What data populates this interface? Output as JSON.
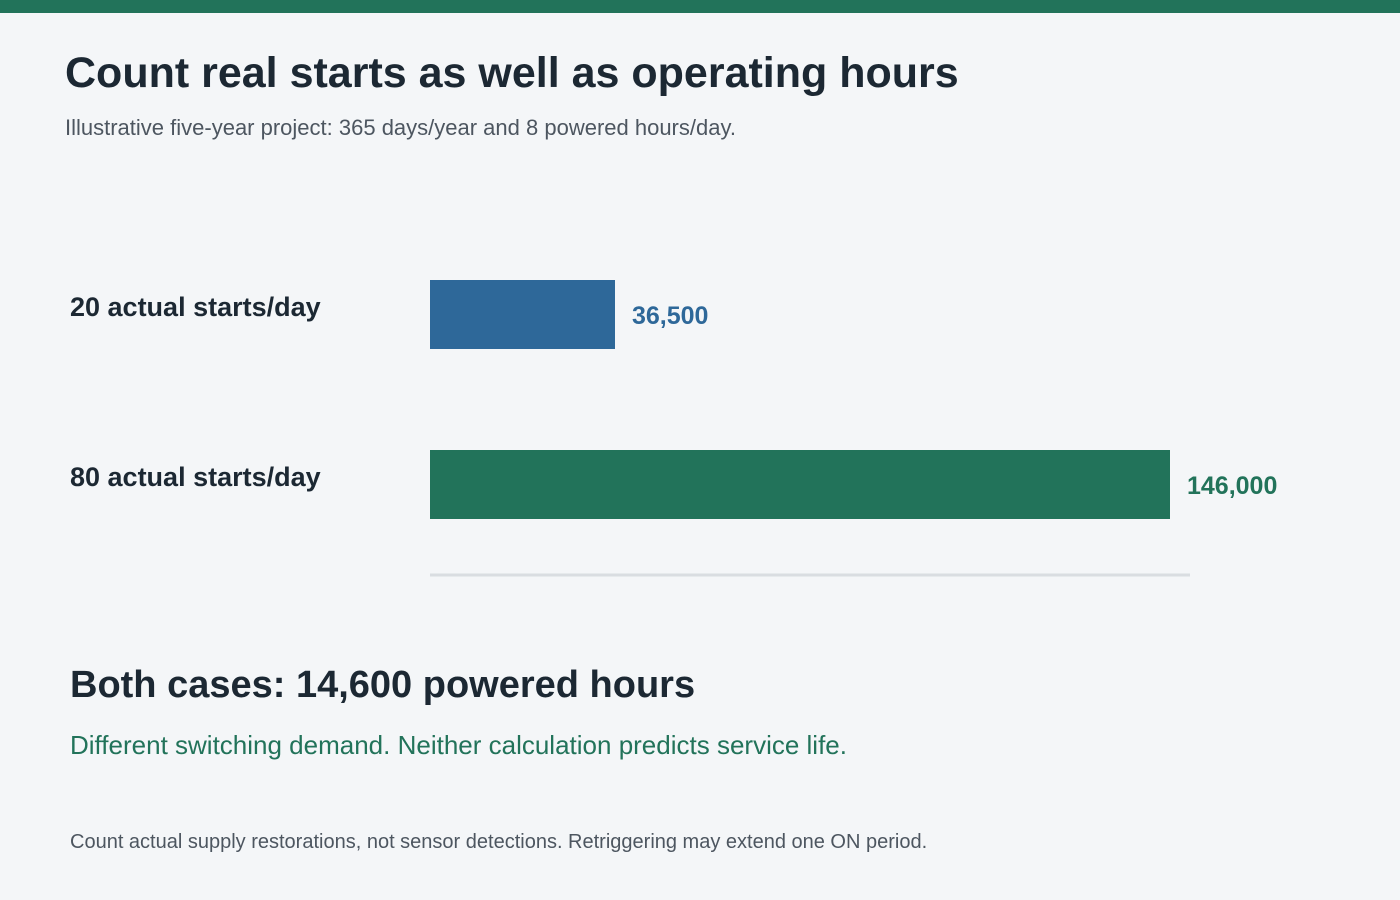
{
  "title": "Count real starts as well as operating hours",
  "subtitle": "Illustrative five-year project: 365 days/year and 8 powered hours/day.",
  "colors": {
    "accent_green": "#22735a",
    "bar_blue": "#2e6899",
    "baseline": "#d9dde1"
  },
  "chart_data": {
    "type": "bar",
    "orientation": "horizontal",
    "categories": [
      "20 actual starts/day",
      "80 actual starts/day"
    ],
    "values": [
      36500,
      146000
    ],
    "value_labels": [
      "36,500",
      "146,000"
    ],
    "bar_colors": [
      "#2e6899",
      "#22735a"
    ],
    "xlim": [
      0,
      150000
    ],
    "grid": false
  },
  "summary": {
    "heading": "Both cases: 14,600 powered hours",
    "note": "Different switching demand. Neither calculation predicts service life."
  },
  "footnote": "Count actual supply restorations, not sensor detections. Retriggering may extend one ON period."
}
